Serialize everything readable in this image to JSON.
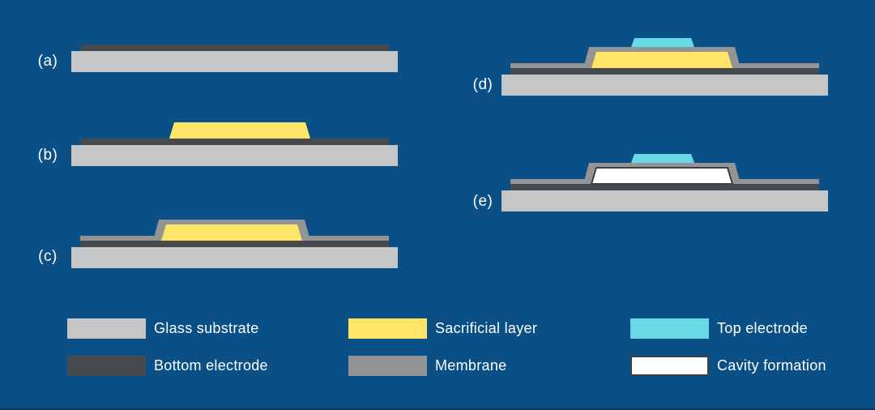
{
  "colors": {
    "background": "#0a5086",
    "glass_substrate": "#c5c6c8",
    "bottom_electrode": "#474a4c",
    "sacrificial_layer": "#ffe567",
    "membrane": "#939495",
    "top_electrode": "#68dae6",
    "cavity": "#ffffff",
    "cavity_border": "#3d3f41",
    "label_text": "#ffffff"
  },
  "steps": [
    {
      "label": "(a)",
      "layers": [
        "glass_substrate",
        "bottom_electrode"
      ]
    },
    {
      "label": "(b)",
      "layers": [
        "glass_substrate",
        "bottom_electrode",
        "sacrificial_layer"
      ]
    },
    {
      "label": "(c)",
      "layers": [
        "glass_substrate",
        "bottom_electrode",
        "sacrificial_layer",
        "membrane"
      ]
    },
    {
      "label": "(d)",
      "layers": [
        "glass_substrate",
        "bottom_electrode",
        "sacrificial_layer",
        "membrane",
        "top_electrode"
      ]
    },
    {
      "label": "(e)",
      "layers": [
        "glass_substrate",
        "bottom_electrode",
        "membrane",
        "cavity",
        "top_electrode"
      ]
    }
  ],
  "legend": [
    {
      "label": "Glass substrate",
      "color_key": "glass_substrate",
      "border": false
    },
    {
      "label": "Bottom electrode",
      "color_key": "bottom_electrode",
      "border": false
    },
    {
      "label": "Sacrificial layer",
      "color_key": "sacrificial_layer",
      "border": false
    },
    {
      "label": "Membrane",
      "color_key": "membrane",
      "border": false
    },
    {
      "label": "Top electrode",
      "color_key": "top_electrode",
      "border": false
    },
    {
      "label": "Cavity formation",
      "color_key": "cavity",
      "border": true
    }
  ]
}
